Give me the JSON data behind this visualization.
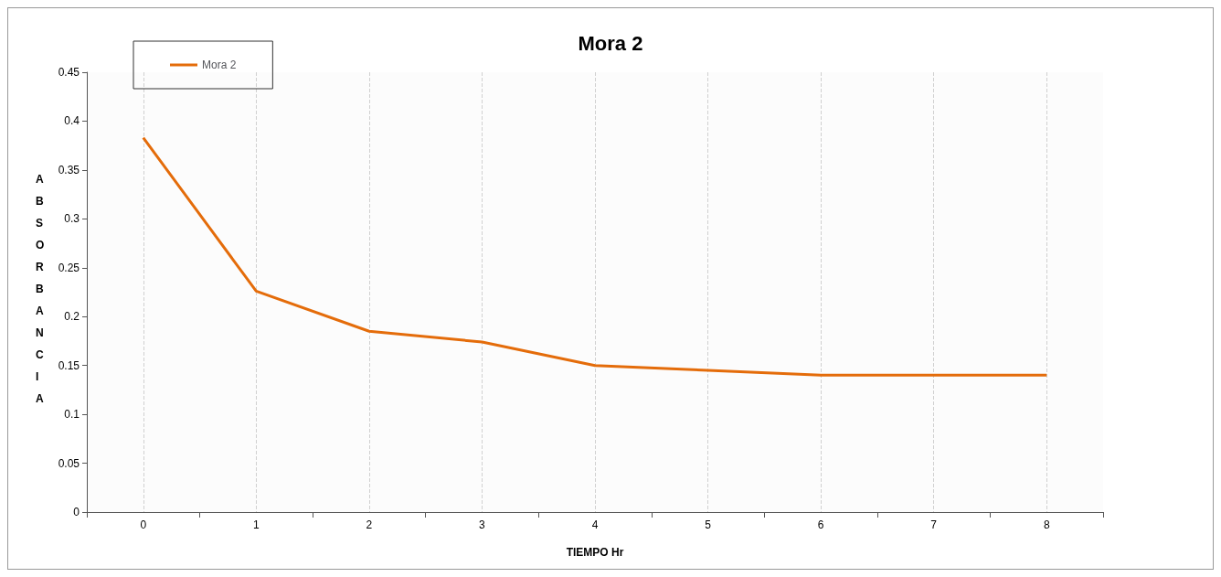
{
  "chart_data": {
    "type": "line",
    "title": "Mora 2",
    "xlabel": "TIEMPO Hr",
    "ylabel": "ABSORBANCIA",
    "categories": [
      "0",
      "1",
      "2",
      "3",
      "4",
      "5",
      "6",
      "7",
      "8"
    ],
    "series": [
      {
        "name": "Mora 2",
        "color": "#e46c0a",
        "values": [
          0.383,
          0.226,
          0.185,
          0.174,
          0.15,
          0.145,
          0.14,
          0.14,
          0.14
        ]
      }
    ],
    "ylim": [
      0,
      0.45
    ],
    "yticks": [
      0,
      0.05,
      0.1,
      0.15,
      0.2,
      0.25,
      0.3,
      0.35,
      0.4,
      0.45
    ],
    "grid": "x",
    "legend": "top left",
    "marker": "none",
    "line_style": "solid"
  }
}
